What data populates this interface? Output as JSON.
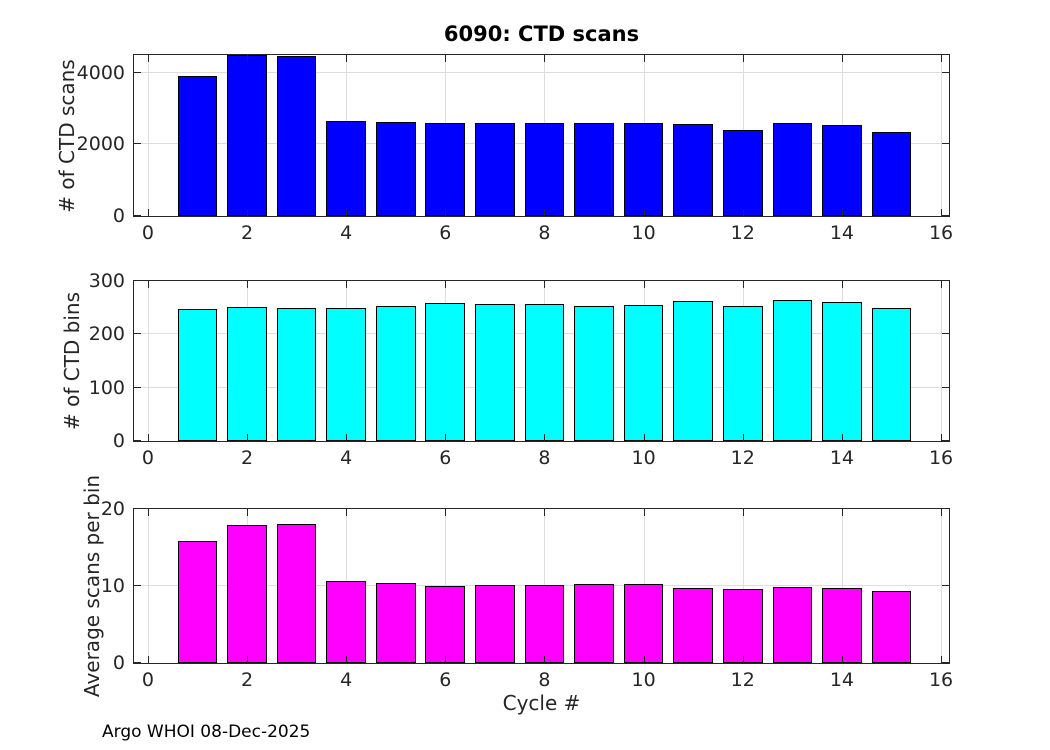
{
  "figure": {
    "title": "6090: CTD scans",
    "xlabel": "Cycle #",
    "footer": "Argo WHOI 08-Dec-2025",
    "background_color": "#FFFFFF",
    "axis_color": "#262626",
    "grid_color": "#DEDEDE",
    "bar_edge_color": "#000000"
  },
  "chart_data": [
    {
      "type": "bar",
      "title": "6090: CTD scans",
      "ylabel": "# of CTD scans",
      "xlabel": "",
      "bar_color": "#0000FF",
      "categories": [
        1,
        2,
        3,
        4,
        5,
        6,
        7,
        8,
        9,
        10,
        11,
        12,
        13,
        14,
        15
      ],
      "values": [
        3900,
        4500,
        4480,
        2660,
        2630,
        2600,
        2600,
        2600,
        2600,
        2600,
        2570,
        2410,
        2610,
        2530,
        2360
      ],
      "bar_width": 0.8,
      "xlim": [
        -0.28,
        16.16
      ],
      "ylim": [
        0,
        4500
      ],
      "xticks": [
        0,
        2,
        4,
        6,
        8,
        10,
        12,
        14,
        16
      ],
      "yticks": [
        0,
        2000,
        4000
      ],
      "grid": true,
      "legend": "none"
    },
    {
      "type": "bar",
      "title": "",
      "ylabel": "# of CTD bins",
      "xlabel": "",
      "bar_color": "#00FFFF",
      "categories": [
        1,
        2,
        3,
        4,
        5,
        6,
        7,
        8,
        9,
        10,
        11,
        12,
        13,
        14,
        15
      ],
      "values": [
        248,
        251,
        249,
        249,
        253,
        258,
        257,
        256,
        254,
        255,
        263,
        254,
        264,
        261,
        250
      ],
      "bar_width": 0.8,
      "xlim": [
        -0.28,
        16.16
      ],
      "ylim": [
        0,
        300
      ],
      "xticks": [
        0,
        2,
        4,
        6,
        8,
        10,
        12,
        14,
        16
      ],
      "yticks": [
        0,
        100,
        200,
        300
      ],
      "grid": true,
      "legend": "none"
    },
    {
      "type": "bar",
      "title": "",
      "ylabel": "Average scans per bin",
      "xlabel": "Cycle #",
      "bar_color": "#FF00FF",
      "categories": [
        1,
        2,
        3,
        4,
        5,
        6,
        7,
        8,
        9,
        10,
        11,
        12,
        13,
        14,
        15
      ],
      "values": [
        15.8,
        17.9,
        18.0,
        10.6,
        10.4,
        10.0,
        10.1,
        10.1,
        10.3,
        10.2,
        9.7,
        9.6,
        9.9,
        9.7,
        9.4
      ],
      "bar_width": 0.8,
      "xlim": [
        -0.28,
        16.16
      ],
      "ylim": [
        0,
        20
      ],
      "xticks": [
        0,
        2,
        4,
        6,
        8,
        10,
        12,
        14,
        16
      ],
      "yticks": [
        0,
        10,
        20
      ],
      "grid": true,
      "legend": "none"
    }
  ]
}
